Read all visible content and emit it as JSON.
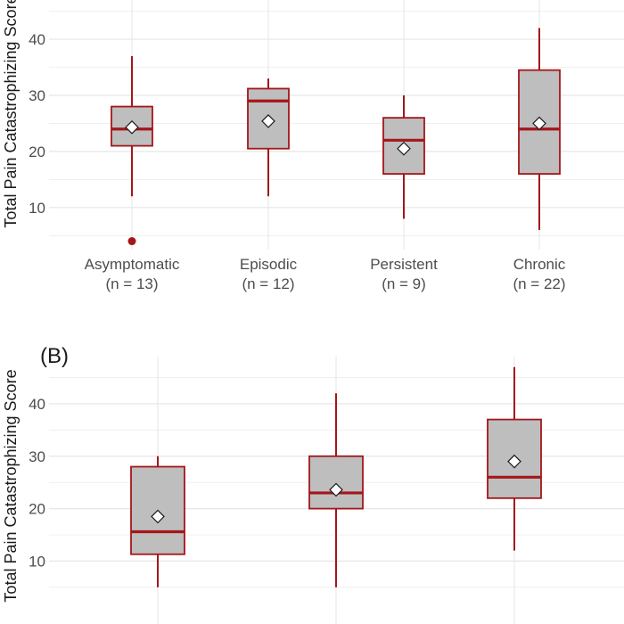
{
  "chart_data": [
    {
      "type": "box",
      "panel_label": "",
      "ylabel": "Total Pain Catastrophizing Score",
      "yticks": [
        10,
        20,
        30,
        40
      ],
      "ylim": [
        2.5,
        47
      ],
      "grid": true,
      "categories": [
        {
          "label": "Asymptomatic",
          "n": "(n = 13)"
        },
        {
          "label": "Episodic",
          "n": "(n = 12)"
        },
        {
          "label": "Persistent",
          "n": "(n = 9)"
        },
        {
          "label": "Chronic",
          "n": "(n = 22)"
        }
      ],
      "boxes": [
        {
          "min": 12,
          "q1": 21,
          "median": 24,
          "q3": 28,
          "max": 37,
          "mean": 24.3,
          "outliers": [
            4
          ]
        },
        {
          "min": 12,
          "q1": 20.5,
          "median": 29,
          "q3": 31.2,
          "max": 33,
          "mean": 25.4,
          "outliers": []
        },
        {
          "min": 8,
          "q1": 16,
          "median": 22,
          "q3": 26,
          "max": 30,
          "mean": 20.5,
          "outliers": []
        },
        {
          "min": 6,
          "q1": 16,
          "median": 24,
          "q3": 34.5,
          "max": 42,
          "mean": 25,
          "outliers": []
        }
      ]
    },
    {
      "type": "box",
      "panel_label": "(B)",
      "ylabel": "Total Pain Catastrophizing Score",
      "yticks": [
        10,
        20,
        30,
        40
      ],
      "ylim": [
        -2,
        49
      ],
      "grid": true,
      "categories": [
        {
          "label": "",
          "n": ""
        },
        {
          "label": "",
          "n": ""
        },
        {
          "label": "",
          "n": ""
        }
      ],
      "boxes": [
        {
          "min": 5,
          "q1": 11.3,
          "median": 15.6,
          "q3": 28,
          "max": 30,
          "mean": 18.5,
          "outliers": []
        },
        {
          "min": 5,
          "q1": 20,
          "median": 23,
          "q3": 30,
          "max": 42,
          "mean": 23.6,
          "outliers": []
        },
        {
          "min": 12,
          "q1": 22,
          "median": 26,
          "q3": 37,
          "max": 47,
          "mean": 29,
          "outliers": []
        }
      ]
    }
  ],
  "colors": {
    "box_fill": "#bebebe",
    "box_stroke": "#a4161a",
    "grid": "#e6e6e6",
    "mean_fill": "#ffffff",
    "mean_stroke": "#1a1a1a"
  }
}
